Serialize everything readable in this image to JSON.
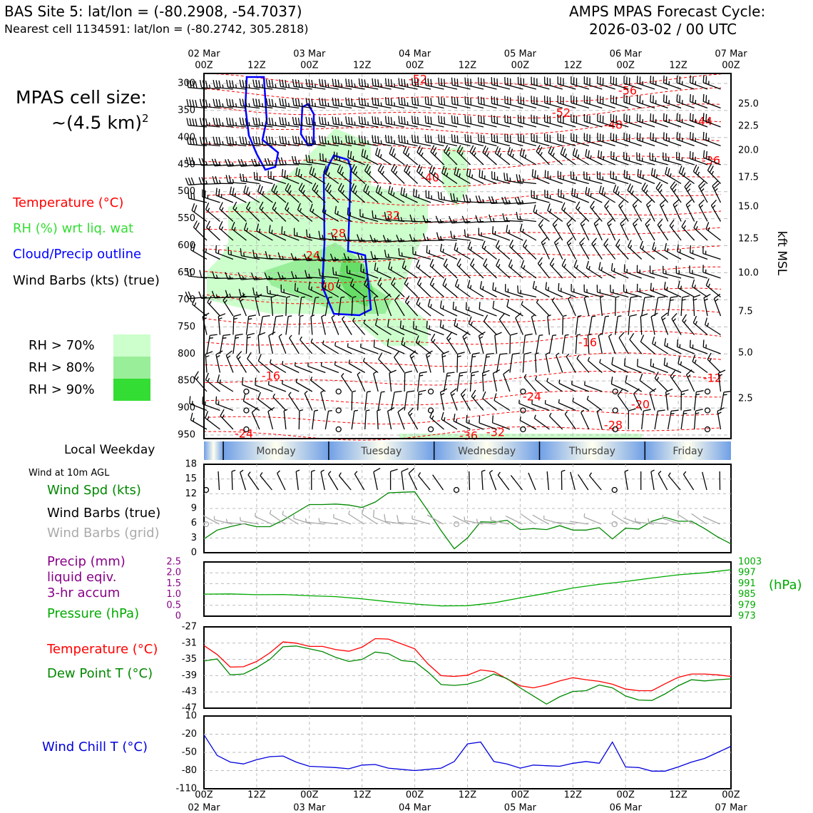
{
  "header": {
    "site_title": "BAS Site 5: lat/lon = (-80.2908, -54.7037)",
    "nearest_cell": "Nearest cell 1134591: lat/lon = (-80.2742, 305.2818)",
    "cycle_title": "AMPS MPAS Forecast Cycle:",
    "cycle_time": "2026-03-02 / 00 UTC"
  },
  "cell_size": {
    "line1": "MPAS cell size:",
    "line2": "~(4.5 km)",
    "sup": "2"
  },
  "legend_top": {
    "temperature": "Temperature (°C)",
    "rh": "RH (%) wrt liq. wat",
    "cloud": "Cloud/Precip outline",
    "wind": "Wind Barbs (kts) (true)",
    "rh70": "RH > 70%",
    "rh80": "RH > 80%",
    "rh90": "RH > 90%",
    "colors": {
      "temperature": "#ff0000",
      "rh": "#33dd33",
      "cloud": "#0000ff",
      "rh70": "#ccffcc",
      "rh80": "#99ee99",
      "rh90": "#33dd33"
    }
  },
  "time_axis": {
    "top_dates": [
      "02 Mar",
      "03 Mar",
      "04 Mar",
      "05 Mar",
      "06 Mar",
      "07 Mar"
    ],
    "hour_labels": [
      "00Z",
      "12Z",
      "00Z",
      "12Z",
      "00Z",
      "12Z",
      "00Z",
      "12Z",
      "00Z",
      "12Z",
      "00Z"
    ]
  },
  "weekday_band": {
    "label": "Local Weekday",
    "days": [
      "Monday",
      "Tuesday",
      "Wednesday",
      "Thursday",
      "Friday"
    ]
  },
  "profile_panel": {
    "pressure_ticks": [
      300,
      350,
      400,
      450,
      500,
      550,
      600,
      650,
      700,
      750,
      800,
      850,
      900,
      950
    ],
    "right_axis_label": "kft MSL",
    "kft_ticks": [
      "25.0",
      "22.5",
      "20.0",
      "17.5",
      "15.0",
      "12.5",
      "10.0",
      "7.5",
      "5.0",
      "2.5"
    ],
    "temp_labels": [
      "-52",
      "-56",
      "-52",
      "-48",
      "-44",
      "-36",
      "-40",
      "-32",
      "-28",
      "-24",
      "-20",
      "-16",
      "-16",
      "-12",
      "-24",
      "-20",
      "-28",
      "-36",
      "-32",
      "-24"
    ]
  },
  "wind_panel": {
    "subtitle": "Wind at 10m AGL",
    "label_spd": "Wind Spd (kts)",
    "label_true": "Wind Barbs (true)",
    "label_grid": "Wind Barbs (grid)",
    "y_ticks": [
      "18",
      "15",
      "12",
      "9",
      "6",
      "3",
      "0"
    ]
  },
  "precip_panel": {
    "label_precip": "Precip (mm)",
    "label_liquid": "liquid eqiv.",
    "label_accum": "3-hr accum",
    "label_pressure": "Pressure (hPa)",
    "left_ticks": [
      "2.5",
      "2.0",
      "1.5",
      "1.0",
      "0.5",
      "0"
    ],
    "right_ticks": [
      "1003",
      "997",
      "991",
      "985",
      "979",
      "973"
    ],
    "right_unit": "(hPa)"
  },
  "temp_panel": {
    "label_temp": "Temperature (°C)",
    "label_dew": "Dew Point T (°C)",
    "y_ticks": [
      "-27",
      "-31",
      "-35",
      "-39",
      "-43",
      "-47"
    ]
  },
  "chill_panel": {
    "label": "Wind Chill T (°C)",
    "y_ticks": [
      "10",
      "-20",
      "-50",
      "-80",
      "-110"
    ]
  },
  "chart_data": [
    {
      "type": "line",
      "title": "Wind at 10m AGL",
      "ylabel": "Wind Spd (kts)",
      "ylim": [
        0,
        18
      ],
      "x_hours": [
        0,
        3,
        6,
        9,
        12,
        15,
        18,
        21,
        24,
        27,
        30,
        33,
        36,
        39,
        42,
        45,
        48,
        51,
        54,
        57,
        60,
        63,
        66,
        69,
        72,
        75,
        78,
        81,
        84,
        87,
        90,
        93,
        96,
        99,
        102,
        105,
        108,
        111,
        114,
        117,
        120
      ],
      "series": [
        {
          "name": "Wind Spd (kts)",
          "color": "#008800",
          "values": [
            2.8,
            4.6,
            5.3,
            5.9,
            5.3,
            5.3,
            6.6,
            8.2,
            9.8,
            9.8,
            9.9,
            9.7,
            9.2,
            10.3,
            12.2,
            12.3,
            12.4,
            8.5,
            4.5,
            0.8,
            3.0,
            6.3,
            6.2,
            6.6,
            4.7,
            4.9,
            4.7,
            5.5,
            4.6,
            4.6,
            5.1,
            2.8,
            5.0,
            4.8,
            6.4,
            7.2,
            6.4,
            6.4,
            4.9,
            3.2,
            1.8
          ]
        }
      ]
    },
    {
      "type": "line",
      "title": "Precip / Pressure",
      "ylabel": "Pressure (hPa)",
      "ylim": [
        973,
        1003
      ],
      "x_hours": [
        0,
        6,
        12,
        18,
        24,
        30,
        36,
        42,
        48,
        54,
        60,
        66,
        72,
        78,
        84,
        90,
        96,
        102,
        108,
        114,
        120
      ],
      "series": [
        {
          "name": "Pressure (hPa)",
          "color": "#00aa00",
          "values": [
            985.2,
            985.3,
            984.9,
            985.0,
            984.3,
            983.8,
            982.6,
            981.0,
            979.7,
            978.7,
            978.8,
            980.4,
            983.1,
            985.7,
            988.6,
            990.6,
            992.2,
            994.1,
            995.9,
            997.0,
            998.7
          ]
        }
      ]
    },
    {
      "type": "line",
      "title": "Temperature / Dew Point",
      "ylabel": "°C",
      "ylim": [
        -47,
        -27
      ],
      "x_hours": [
        0,
        3,
        6,
        9,
        12,
        15,
        18,
        21,
        24,
        27,
        30,
        33,
        36,
        39,
        42,
        45,
        48,
        51,
        54,
        57,
        60,
        63,
        66,
        69,
        72,
        75,
        78,
        81,
        84,
        87,
        90,
        93,
        96,
        99,
        102,
        105,
        108,
        111,
        114,
        117,
        120
      ],
      "series": [
        {
          "name": "Temperature (°C)",
          "color": "#ff0000",
          "values": [
            -31.6,
            -33.8,
            -36.9,
            -36.8,
            -35.5,
            -33.4,
            -30.7,
            -31.0,
            -31.8,
            -31.8,
            -32.6,
            -33.0,
            -32.0,
            -29.9,
            -30.0,
            -31.2,
            -32.4,
            -36.1,
            -39.0,
            -39.2,
            -38.9,
            -37.6,
            -38.0,
            -39.8,
            -41.5,
            -42.0,
            -41.3,
            -40.3,
            -39.5,
            -40.0,
            -40.4,
            -41.1,
            -42.3,
            -42.7,
            -42.7,
            -41.0,
            -39.4,
            -38.6,
            -38.6,
            -38.8,
            -39.2
          ]
        },
        {
          "name": "Dew Point T (°C)",
          "color": "#008800",
          "values": [
            -35.4,
            -34.9,
            -38.8,
            -38.6,
            -37.0,
            -35.0,
            -31.9,
            -31.7,
            -32.4,
            -33.1,
            -34.5,
            -35.5,
            -35.0,
            -33.2,
            -33.6,
            -35.3,
            -35.6,
            -38.1,
            -41.2,
            -41.4,
            -41.1,
            -40.2,
            -38.6,
            -39.7,
            -42.0,
            -44.0,
            -46.0,
            -44.2,
            -42.9,
            -42.7,
            -41.3,
            -42.0,
            -44.0,
            -45.0,
            -45.1,
            -43.5,
            -41.5,
            -40.0,
            -40.3,
            -40.0,
            -39.8
          ]
        }
      ]
    },
    {
      "type": "line",
      "title": "Wind Chill",
      "ylabel": "Wind Chill T (°C)",
      "ylim": [
        -110,
        10
      ],
      "x_hours": [
        0,
        3,
        6,
        9,
        12,
        15,
        18,
        21,
        24,
        27,
        30,
        33,
        36,
        39,
        42,
        45,
        48,
        51,
        54,
        57,
        60,
        63,
        66,
        69,
        72,
        75,
        78,
        81,
        84,
        87,
        90,
        93,
        96,
        99,
        102,
        105,
        108,
        111,
        114,
        117,
        120
      ],
      "series": [
        {
          "name": "Wind Chill T (°C)",
          "color": "#0000dd",
          "values": [
            -21,
            -55,
            -66,
            -69,
            -62,
            -57,
            -56,
            -66,
            -73,
            -74,
            -75,
            -77,
            -71,
            -70,
            -76,
            -78,
            -80,
            -78,
            -76,
            -65,
            -36,
            -33,
            -65,
            -69,
            -76,
            -71,
            -72,
            -73,
            -68,
            -65,
            -68,
            -33,
            -74,
            -75,
            -81,
            -81,
            -74,
            -66,
            -60,
            -50,
            -40
          ]
        }
      ]
    }
  ]
}
